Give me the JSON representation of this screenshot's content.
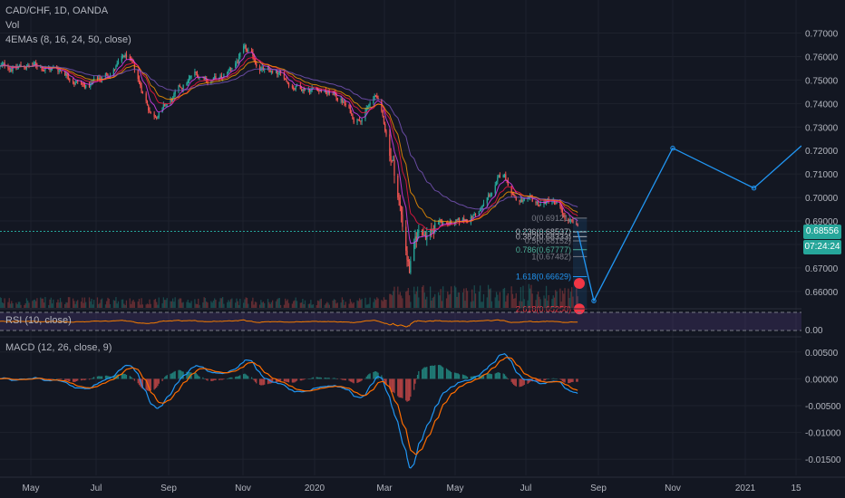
{
  "header": {
    "symbol_line": "CAD/CHF, 1D, OANDA",
    "vol_label": "Vol",
    "ma_label": "4EMAs (8, 16, 24, 50, close)",
    "rsi_label": "RSI (10, close)",
    "macd_label": "MACD (12, 26, close, 9)"
  },
  "price_axis": {
    "ticks": [
      "0.77000",
      "0.76000",
      "0.75000",
      "0.74000",
      "0.73000",
      "0.72000",
      "0.71000",
      "0.70000",
      "0.69000",
      "0.68000",
      "0.67000",
      "0.66000"
    ],
    "tick_values": [
      0.77,
      0.76,
      0.75,
      0.74,
      0.73,
      0.72,
      0.71,
      0.7,
      0.69,
      0.68,
      0.67,
      0.66
    ],
    "current_price": "0.68556",
    "countdown": "07:24:24",
    "rsi_tick": "0.00"
  },
  "macd_axis": {
    "ticks": [
      "0.00500",
      "0.00000",
      "-0.00500",
      "-0.01000",
      "-0.01500"
    ],
    "tick_values": [
      0.005,
      0.0,
      -0.005,
      -0.01,
      -0.015
    ]
  },
  "time_axis": {
    "labels": [
      "May",
      "Jul",
      "Sep",
      "Nov",
      "2020",
      "Mar",
      "May",
      "Jul",
      "Sep",
      "Nov",
      "2021",
      "15"
    ]
  },
  "fib_levels": [
    {
      "label": "0(0.69121)",
      "value": 0.69121,
      "color": "#787b86"
    },
    {
      "label": "0.236(0.68537)",
      "value": 0.68537,
      "color": "#b2b5be"
    },
    {
      "label": "0.382(0.68333)",
      "value": 0.68333,
      "color": "#b2b5be"
    },
    {
      "label": "0.5(0.68152)",
      "value": 0.68152,
      "color": "#787b86"
    },
    {
      "label": "0.786(0.67777)",
      "value": 0.67777,
      "color": "#4caf98"
    },
    {
      "label": "1(0.67482)",
      "value": 0.67482,
      "color": "#787b86"
    },
    {
      "label": "1.618(0.66629)",
      "value": 0.66629,
      "color": "#2196f3"
    },
    {
      "label": "2.618(0.65250)",
      "value": 0.6525,
      "color": "#f23645"
    }
  ],
  "chart_data": {
    "type": "line",
    "price_anchors": [
      [
        "2019-04-01",
        0.7555
      ],
      [
        "2019-05-01",
        0.756
      ],
      [
        "2019-05-25",
        0.7545
      ],
      [
        "2019-06-15",
        0.747
      ],
      [
        "2019-07-01",
        0.752
      ],
      [
        "2019-07-20",
        0.76
      ],
      [
        "2019-08-10",
        0.735
      ],
      [
        "2019-08-25",
        0.74
      ],
      [
        "2019-09-15",
        0.752
      ],
      [
        "2019-10-10",
        0.75
      ],
      [
        "2019-10-28",
        0.762
      ],
      [
        "2019-11-15",
        0.754
      ],
      [
        "2019-12-10",
        0.748
      ],
      [
        "2019-12-31",
        0.747
      ],
      [
        "2020-01-20",
        0.742
      ],
      [
        "2020-02-01",
        0.733
      ],
      [
        "2020-02-20",
        0.743
      ],
      [
        "2020-03-05",
        0.715
      ],
      [
        "2020-03-19",
        0.67
      ],
      [
        "2020-03-27",
        0.685
      ],
      [
        "2020-04-15",
        0.69
      ],
      [
        "2020-05-01",
        0.688
      ],
      [
        "2020-05-20",
        0.695
      ],
      [
        "2020-06-08",
        0.71
      ],
      [
        "2020-06-20",
        0.699
      ],
      [
        "2020-07-05",
        0.696
      ],
      [
        "2020-07-20",
        0.699
      ],
      [
        "2020-08-01",
        0.69
      ],
      [
        "2020-08-11",
        0.6856
      ]
    ],
    "projection_path": [
      [
        "2020-08-11",
        0.6856
      ],
      [
        "2020-08-25",
        0.656
      ],
      [
        "2020-11-01",
        0.721
      ],
      [
        "2021-01-10",
        0.704
      ],
      [
        "2021-02-20",
        0.722
      ]
    ],
    "fib_projection": {
      "start": "2020-08-07",
      "end": "2020-08-19",
      "y_top": 0.69121,
      "y_bottom": 0.6525
    },
    "price_ylim": [
      0.653,
      0.781
    ],
    "macd_ylim": [
      -0.018,
      0.0075
    ],
    "current_price": 0.68556,
    "x_range": [
      "2019-04-01",
      "2021-02-20"
    ],
    "series": [
      {
        "name": "4EMAs (8, 16, 24, 50, close)",
        "color": "#ff9800"
      },
      {
        "name": "MACD (12, 26, close, 9)",
        "color": "#2196f3"
      }
    ],
    "colors": {
      "up": "#26a69a",
      "down": "#ef5350",
      "signal": "#ff6d00",
      "rsi": "#f57c00",
      "projection": "#2196f3"
    }
  }
}
